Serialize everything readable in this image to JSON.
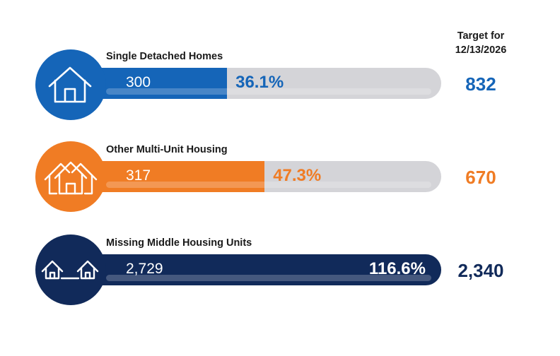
{
  "target_header": {
    "line1": "Target for",
    "line2": "12/13/2026"
  },
  "colors": {
    "blue": "#1565b8",
    "orange": "#f07c24",
    "navy": "#112a5a",
    "track": "#d4d4d8"
  },
  "chart_data": {
    "type": "bar",
    "orientation": "horizontal-progress",
    "categories": [
      "Single Detached Homes",
      "Other Multi-Unit Housing",
      "Missing Middle Housing Units"
    ],
    "series": [
      {
        "name": "",
        "values": [
          300,
          317,
          2729
        ]
      }
    ],
    "percent_of_target": [
      36.1,
      47.3,
      116.6
    ],
    "targets": [
      832,
      670,
      2340
    ],
    "target_label": "Target for 12/13/2026"
  },
  "rows": [
    {
      "label": "Single Detached Homes",
      "count": "300",
      "percent": "36.1%",
      "percent_value": 36.1,
      "target": "832",
      "color": "#1565b8",
      "icon": "house-icon"
    },
    {
      "label": "Other Multi-Unit Housing",
      "count": "317",
      "percent": "47.3%",
      "percent_value": 47.3,
      "target": "670",
      "color": "#f07c24",
      "icon": "multi-house-icon"
    },
    {
      "label": "Missing Middle Housing Units",
      "count": "2,729",
      "percent": "116.6%",
      "percent_value": 116.6,
      "target": "2,340",
      "color": "#112a5a",
      "icon": "two-houses-icon"
    }
  ]
}
